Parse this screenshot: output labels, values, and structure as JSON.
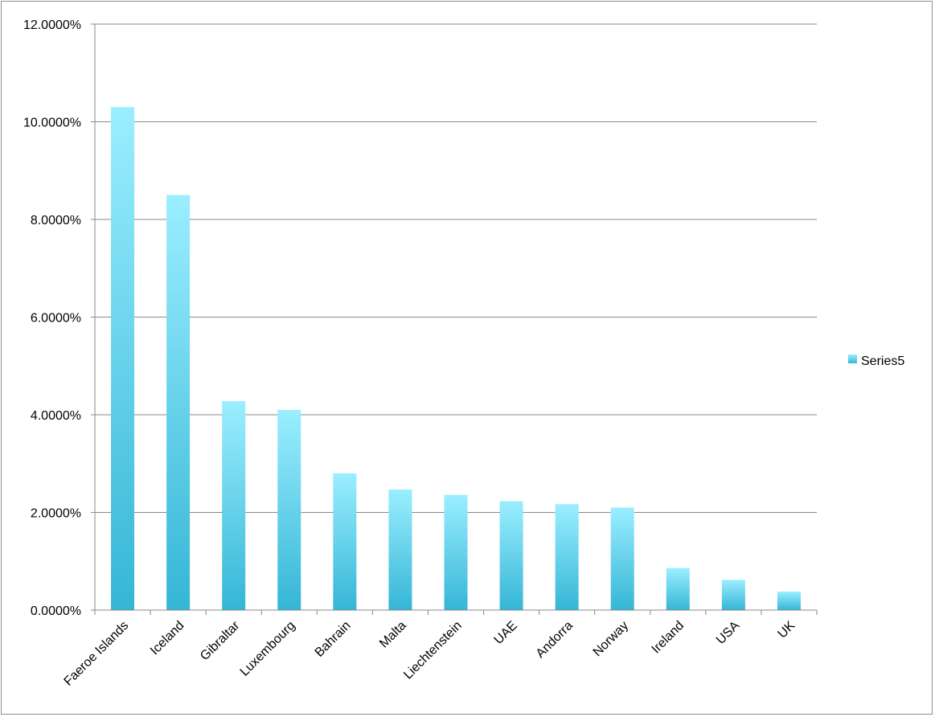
{
  "chart_data": {
    "type": "bar",
    "title": "",
    "xlabel": "",
    "ylabel": "",
    "categories": [
      "Faeroe Islands",
      "Iceland",
      "Gibraltar",
      "Luxembourg",
      "Bahrain",
      "Malta",
      "Liechtenstein",
      "UAE",
      "Andorra",
      "Norway",
      "Ireland",
      "USA",
      "UK"
    ],
    "series": [
      {
        "name": "Series5",
        "values": [
          10.3,
          8.5,
          4.28,
          4.1,
          2.8,
          2.47,
          2.36,
          2.23,
          2.17,
          2.1,
          0.86,
          0.62,
          0.38
        ]
      }
    ],
    "ylim": [
      0,
      12
    ],
    "yticks": [
      0,
      2,
      4,
      6,
      8,
      10,
      12
    ],
    "ytick_labels": [
      "0.0000%",
      "2.0000%",
      "4.0000%",
      "6.0000%",
      "8.0000%",
      "10.0000%",
      "12.0000%"
    ],
    "grid": true,
    "legend_position": "right",
    "colors": {
      "bar_top": "#9beeff",
      "bar_bottom": "#35b6d6",
      "grid": "#888888",
      "axis": "#888888"
    }
  }
}
